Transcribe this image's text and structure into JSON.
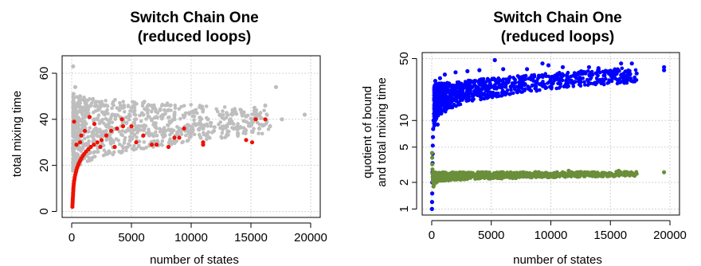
{
  "chart_data": [
    {
      "type": "scatter",
      "title": "Switch Chain One",
      "subtitle": "(reduced loops)",
      "xlabel": "number of states",
      "ylabel": "total mixing time",
      "xlim": [
        0,
        20000
      ],
      "ylim": [
        0,
        65
      ],
      "xscale": "linear",
      "yscale": "linear",
      "xticks": [
        0,
        5000,
        10000,
        15000,
        20000
      ],
      "yticks": [
        0,
        20,
        40,
        60
      ],
      "grid": true,
      "legend": "none",
      "colors": {
        "gray": "#bebebe",
        "red": "#ee1100"
      },
      "series": [
        {
          "color": "#bebebe",
          "points": [
            [
              120,
              63
            ],
            [
              150,
              51
            ],
            [
              300,
              54
            ],
            [
              500,
              47
            ],
            [
              700,
              50
            ],
            [
              900,
              45
            ],
            [
              1100,
              48
            ],
            [
              1300,
              42
            ],
            [
              1600,
              46
            ],
            [
              1900,
              40
            ],
            [
              2200,
              44
            ],
            [
              2500,
              39
            ],
            [
              2800,
              43
            ],
            [
              3100,
              38
            ],
            [
              3400,
              42
            ],
            [
              3700,
              36
            ],
            [
              4000,
              44
            ],
            [
              4300,
              40
            ],
            [
              4600,
              35
            ],
            [
              5000,
              45
            ],
            [
              5300,
              40
            ],
            [
              5600,
              37
            ],
            [
              6000,
              42
            ],
            [
              6300,
              34
            ],
            [
              6700,
              40
            ],
            [
              7000,
              37
            ],
            [
              7400,
              44
            ],
            [
              7800,
              33
            ],
            [
              8200,
              39
            ],
            [
              8600,
              42
            ],
            [
              9000,
              36
            ],
            [
              9400,
              41
            ],
            [
              9800,
              34
            ],
            [
              10200,
              43
            ],
            [
              10600,
              38
            ],
            [
              11000,
              36
            ],
            [
              11400,
              40
            ],
            [
              11900,
              35
            ],
            [
              12400,
              42
            ],
            [
              12900,
              37
            ],
            [
              13400,
              39
            ],
            [
              13900,
              34
            ],
            [
              14400,
              43
            ],
            [
              14900,
              38
            ],
            [
              15300,
              45
            ],
            [
              15700,
              36
            ],
            [
              16200,
              46
            ],
            [
              16600,
              37
            ],
            [
              17100,
              54
            ],
            [
              17600,
              40
            ],
            [
              19500,
              42
            ]
          ],
          "band": {
            "x_start": 100,
            "x_end": 16500,
            "low_at_start": 17,
            "low_at_end": 34,
            "high_at_start": 50,
            "high_at_end": 44
          }
        },
        {
          "color": "#ee1100",
          "points": [
            [
              60,
              2
            ],
            [
              70,
              3
            ],
            [
              80,
              4
            ],
            [
              90,
              5
            ],
            [
              100,
              6
            ],
            [
              110,
              7
            ],
            [
              120,
              8
            ],
            [
              130,
              9
            ],
            [
              140,
              10
            ],
            [
              160,
              11
            ],
            [
              180,
              12
            ],
            [
              200,
              13
            ],
            [
              230,
              14
            ],
            [
              260,
              15
            ],
            [
              300,
              16
            ],
            [
              350,
              17
            ],
            [
              400,
              18
            ],
            [
              460,
              19
            ],
            [
              530,
              20
            ],
            [
              600,
              21
            ],
            [
              700,
              22
            ],
            [
              800,
              23
            ],
            [
              920,
              24
            ],
            [
              1050,
              25
            ],
            [
              1200,
              26
            ],
            [
              1400,
              27
            ],
            [
              1600,
              28
            ],
            [
              1850,
              29
            ],
            [
              2150,
              30
            ],
            [
              2500,
              31
            ],
            [
              2900,
              33
            ],
            [
              3300,
              35
            ],
            [
              3800,
              36
            ],
            [
              4300,
              37
            ],
            [
              200,
              39
            ],
            [
              800,
              33
            ],
            [
              1100,
              35
            ],
            [
              1500,
              41
            ],
            [
              1900,
              38
            ],
            [
              2400,
              28
            ],
            [
              3600,
              28
            ],
            [
              4200,
              40
            ],
            [
              5000,
              37
            ],
            [
              5400,
              30
            ],
            [
              6000,
              33
            ],
            [
              6700,
              29
            ],
            [
              7100,
              29
            ],
            [
              8100,
              28
            ],
            [
              8600,
              32
            ],
            [
              9000,
              32
            ],
            [
              9400,
              36
            ],
            [
              11000,
              30
            ],
            [
              11000,
              29
            ],
            [
              14600,
              31
            ],
            [
              15100,
              30
            ],
            [
              15400,
              40
            ],
            [
              16200,
              40
            ],
            [
              400,
              29
            ],
            [
              700,
              30
            ]
          ]
        }
      ]
    },
    {
      "type": "scatter",
      "title": "Switch Chain One",
      "subtitle": "(reduced loops)",
      "xlabel": "number of states",
      "ylabel": "quotient of bound",
      "ylabel2": "and total mixing time",
      "xlim": [
        0,
        20000
      ],
      "ylim": [
        1,
        50
      ],
      "xscale": "linear",
      "yscale": "log",
      "xticks": [
        0,
        5000,
        10000,
        15000,
        20000
      ],
      "yticks": [
        1,
        2,
        5,
        10,
        50
      ],
      "grid": true,
      "legend": "none",
      "colors": {
        "blue": "#0000ff",
        "green": "#6b8e3a"
      },
      "series": [
        {
          "color": "#0000ff",
          "points": [
            [
              20,
              1.0
            ],
            [
              30,
              1.2
            ],
            [
              40,
              1.5
            ],
            [
              50,
              2.0
            ],
            [
              60,
              2.6
            ],
            [
              70,
              3.3
            ],
            [
              80,
              4.2
            ],
            [
              90,
              5.2
            ],
            [
              100,
              6.5
            ],
            [
              120,
              8
            ],
            [
              150,
              10
            ],
            [
              200,
              12
            ],
            [
              260,
              14
            ],
            [
              350,
              16
            ],
            [
              450,
              18
            ],
            [
              600,
              20
            ],
            [
              800,
              21
            ],
            [
              1000,
              22
            ],
            [
              1300,
              23
            ],
            [
              1700,
              24
            ],
            [
              2200,
              25
            ],
            [
              2800,
              26
            ],
            [
              3500,
              27
            ],
            [
              4300,
              28
            ],
            [
              5300,
              29
            ],
            [
              6500,
              30
            ],
            [
              7800,
              31
            ],
            [
              9000,
              32
            ],
            [
              10500,
              32
            ],
            [
              12000,
              33
            ],
            [
              13500,
              33
            ],
            [
              15000,
              33
            ],
            [
              16500,
              34
            ],
            [
              17200,
              34
            ],
            [
              5300,
              48
            ],
            [
              9300,
              44
            ],
            [
              9800,
              42
            ],
            [
              13200,
              40
            ],
            [
              15900,
              44
            ],
            [
              16800,
              44
            ],
            [
              19500,
              37
            ],
            [
              19500,
              40
            ],
            [
              300,
              28
            ],
            [
              700,
              30
            ],
            [
              1100,
              33
            ],
            [
              2000,
              35
            ],
            [
              3000,
              36
            ],
            [
              4000,
              37
            ],
            [
              6000,
              38
            ],
            [
              8000,
              38
            ],
            [
              11000,
              40
            ],
            [
              14000,
              39
            ],
            [
              500,
              9
            ],
            [
              800,
              12
            ],
            [
              1200,
              14
            ],
            [
              1800,
              17
            ],
            [
              2600,
              19
            ],
            [
              3600,
              21
            ],
            [
              4800,
              23
            ],
            [
              6200,
              24
            ],
            [
              7600,
              25
            ],
            [
              9200,
              26
            ],
            [
              10800,
              26
            ],
            [
              12500,
              27
            ],
            [
              14200,
              27
            ],
            [
              15800,
              27
            ],
            [
              17000,
              28
            ]
          ],
          "band": {
            "x_start": 200,
            "x_end": 17200,
            "low_at_start": 8,
            "low_at_end": 27,
            "high_at_start": 26,
            "high_at_end": 40
          }
        },
        {
          "color": "#6b8e3a",
          "points": [
            [
              30,
              4.3
            ],
            [
              40,
              3.8
            ],
            [
              50,
              3.2
            ],
            [
              60,
              2.8
            ],
            [
              70,
              2.5
            ],
            [
              80,
              2.3
            ],
            [
              100,
              2.2
            ],
            [
              150,
              1.8
            ],
            [
              200,
              1.9
            ],
            [
              400,
              2.0
            ],
            [
              800,
              2.1
            ],
            [
              1500,
              2.2
            ],
            [
              2500,
              2.3
            ],
            [
              4000,
              2.3
            ],
            [
              6000,
              2.4
            ],
            [
              8000,
              2.4
            ],
            [
              10000,
              2.4
            ],
            [
              12000,
              2.4
            ],
            [
              14000,
              2.5
            ],
            [
              16000,
              2.5
            ],
            [
              17200,
              2.5
            ],
            [
              19500,
              2.6
            ],
            [
              9000,
              2.6
            ],
            [
              11500,
              2.7
            ],
            [
              13500,
              2.6
            ],
            [
              15700,
              2.7
            ],
            [
              16400,
              2.6
            ]
          ],
          "band": {
            "x_start": 100,
            "x_end": 17200,
            "low_at_start": 2.0,
            "low_at_end": 2.35,
            "high_at_start": 2.6,
            "high_at_end": 2.65
          }
        }
      ]
    }
  ]
}
